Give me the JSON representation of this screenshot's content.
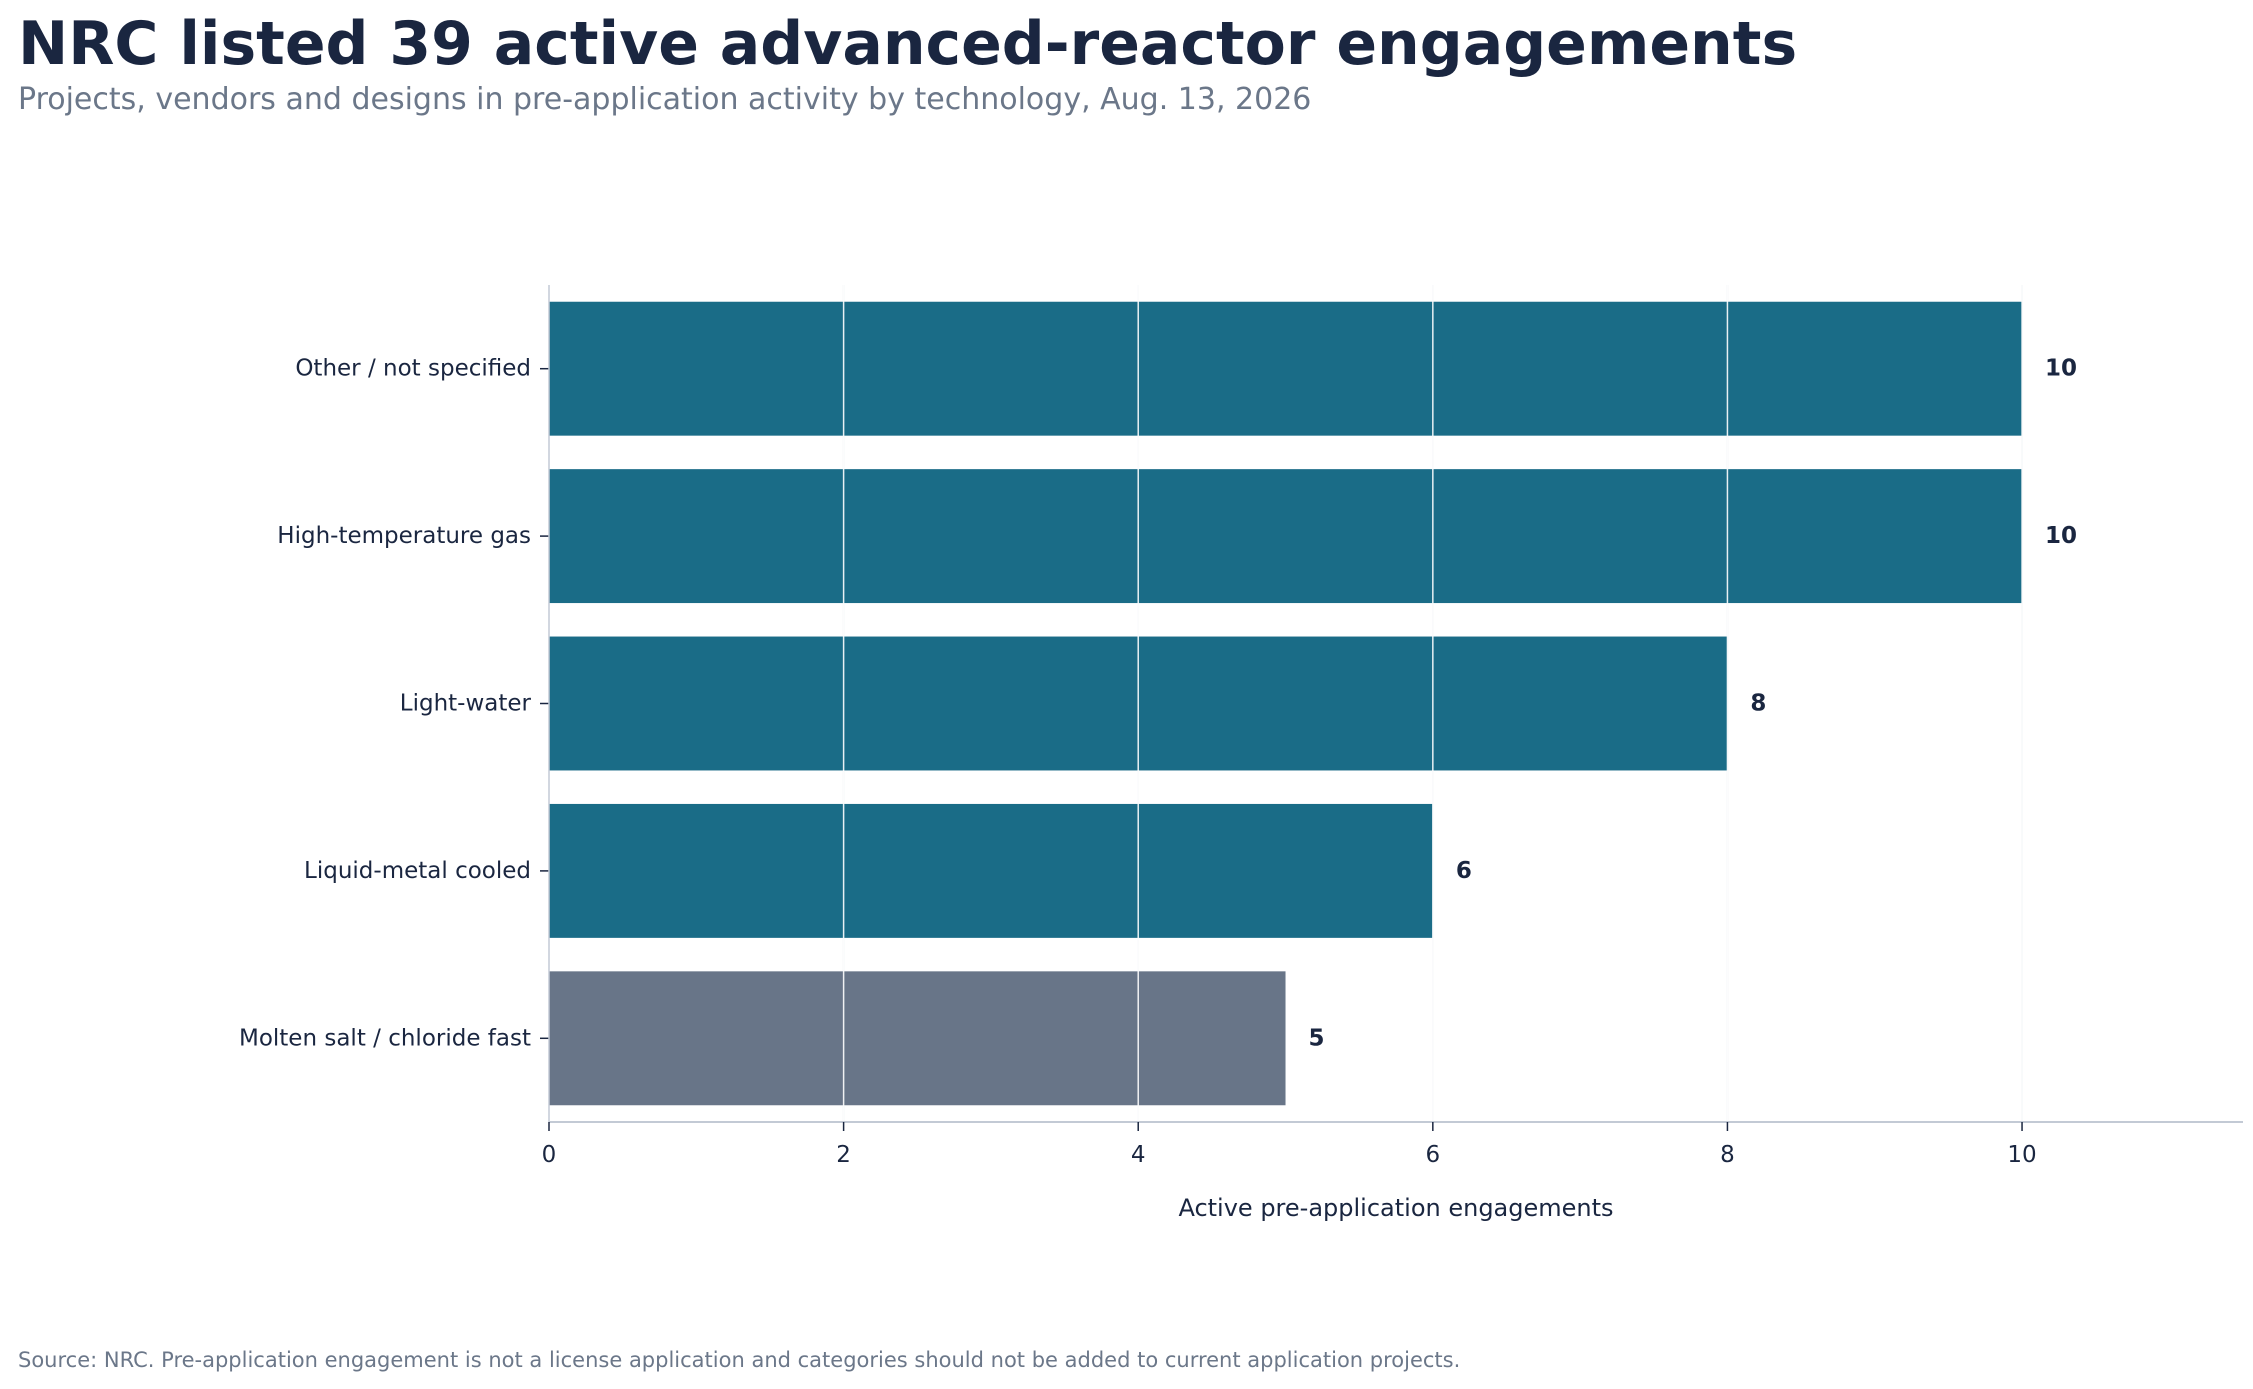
{
  "header": {
    "title": "NRC listed 39 active advanced-reactor engagements",
    "subtitle": "Projects, vendors and designs in pre-application activity by technology, Aug. 13, 2026"
  },
  "footer": {
    "source": "Source: NRC. Pre-application engagement is not a license application and categories should not be added to current application projects."
  },
  "colors": {
    "bar_primary": "#1a6c87",
    "bar_highlight": "#687588",
    "grid": "#dde2ea",
    "axis": "#c3cad5",
    "text_dark": "#1a2640",
    "text_muted": "#6b7789"
  },
  "chart_data": {
    "type": "bar",
    "orientation": "horizontal",
    "categories": [
      "Other / not specified",
      "High-temperature gas",
      "Light-water",
      "Liquid-metal cooled",
      "Molten salt / chloride fast"
    ],
    "values": [
      10,
      10,
      8,
      6,
      5
    ],
    "data_labels": [
      "10",
      "10",
      "8",
      "6",
      "5"
    ],
    "highlighted_category": "Molten salt / chloride fast",
    "xlabel": "Active pre-application engagements",
    "ylabel": "",
    "xlim": [
      0,
      11.5
    ],
    "xticks": [
      0,
      2,
      4,
      6,
      8,
      10
    ],
    "grid": true,
    "legend": "none"
  }
}
